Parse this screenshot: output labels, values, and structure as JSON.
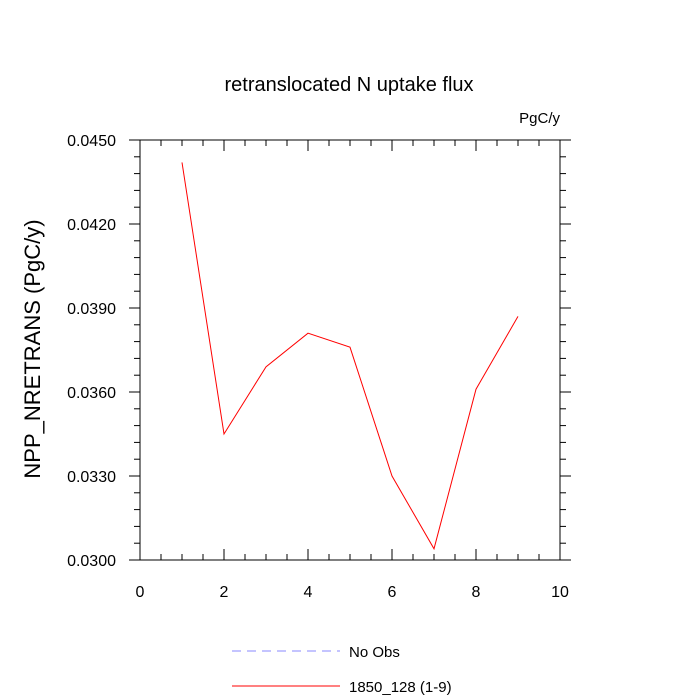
{
  "chart_data": {
    "type": "line",
    "title": "retranslocated N uptake flux",
    "units_label": "PgC/y",
    "xlabel": "",
    "ylabel": "NPP_NRETRANS  (PgC/y)",
    "xlim": [
      0,
      10
    ],
    "ylim": [
      0.03,
      0.045
    ],
    "x_ticks": [
      "0",
      "2",
      "4",
      "6",
      "8",
      "10"
    ],
    "y_ticks": [
      "0.0300",
      "0.0330",
      "0.0360",
      "0.0390",
      "0.0420",
      "0.0450"
    ],
    "grid": false,
    "series": [
      {
        "name": "1850_128 (1-9)",
        "color": "#ff0000",
        "dash": "solid",
        "x": [
          1,
          2,
          3,
          4,
          5,
          6,
          7,
          8,
          9
        ],
        "y": [
          0.0442,
          0.0345,
          0.0369,
          0.0381,
          0.0376,
          0.033,
          0.0304,
          0.0361,
          0.0387
        ]
      }
    ],
    "legend": {
      "placement": "bottom-center",
      "entries": [
        {
          "label": "No Obs",
          "color": "#8888ff",
          "dash": "dashed"
        },
        {
          "label": "1850_128 (1-9)",
          "color": "#ff0000",
          "dash": "solid"
        }
      ]
    }
  }
}
